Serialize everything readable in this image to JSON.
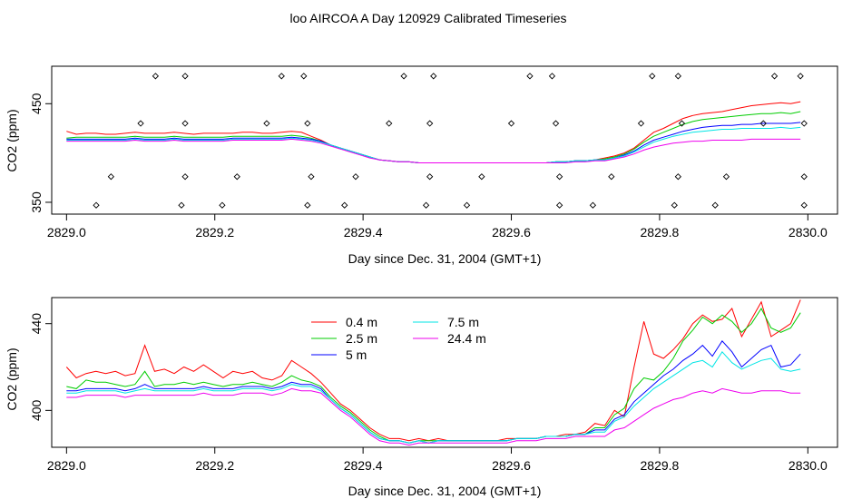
{
  "page": {
    "title": "loo AIRCOA A  Day 120929  Calibrated Timeseries"
  },
  "chart_data": [
    {
      "type": "line",
      "xlabel": "Day since Dec. 31, 2004 (GMT+1)",
      "ylabel": "CO2 (ppm)",
      "xlim": [
        2828.98,
        2830.04
      ],
      "ylim": [
        338,
        488
      ],
      "xticks": [
        "2829.0",
        "2829.2",
        "2829.4",
        "2829.6",
        "2829.8",
        "2830.0"
      ],
      "yticks": [
        "350",
        "450"
      ],
      "grid": false,
      "flags": {
        "top_row": {
          "y": 478,
          "x": [
            2829.12,
            2829.16,
            2829.29,
            2829.32,
            2829.455,
            2829.495,
            2829.625,
            2829.655,
            2829.79,
            2829.825,
            2829.955,
            2829.99
          ]
        },
        "mid_row": {
          "y": 430,
          "x": [
            2829.1,
            2829.16,
            2829.27,
            2829.325,
            2829.435,
            2829.49,
            2829.6,
            2829.66,
            2829.775,
            2829.83,
            2829.94,
            2829.995
          ]
        },
        "low_row": {
          "y": 376,
          "x": [
            2829.06,
            2829.16,
            2829.23,
            2829.33,
            2829.39,
            2829.49,
            2829.56,
            2829.665,
            2829.735,
            2829.825,
            2829.89,
            2829.995
          ]
        },
        "bottom_row": {
          "y": 347,
          "x": [
            2829.04,
            2829.155,
            2829.21,
            2829.325,
            2829.375,
            2829.485,
            2829.54,
            2829.665,
            2829.71,
            2829.82,
            2829.875,
            2829.995
          ]
        }
      },
      "series": [
        {
          "color": "#ff0000",
          "y": [
            422,
            419,
            420,
            420,
            419,
            419,
            420,
            421,
            420,
            420,
            420,
            421,
            420,
            419,
            420,
            420,
            420,
            420,
            421,
            421,
            420,
            420,
            421,
            422,
            421,
            417,
            413,
            408,
            405,
            402,
            399,
            396,
            393,
            392,
            391,
            391,
            390,
            390,
            390,
            390,
            390,
            390,
            390,
            390,
            390,
            390,
            390,
            390,
            390,
            390,
            391,
            391,
            392,
            392,
            393,
            395,
            397,
            400,
            405,
            413,
            421,
            425,
            430,
            435,
            438,
            440,
            441,
            442,
            444,
            446,
            448,
            449,
            450,
            451,
            450,
            452
          ]
        },
        {
          "color": "#00cc00",
          "y": [
            415,
            416,
            416,
            416,
            416,
            416,
            416,
            417,
            416,
            416,
            416,
            417,
            416,
            416,
            416,
            416,
            416,
            417,
            417,
            417,
            417,
            417,
            417,
            418,
            417,
            415,
            412,
            408,
            405,
            402,
            399,
            396,
            393,
            392,
            391,
            391,
            390,
            390,
            390,
            390,
            390,
            390,
            390,
            390,
            390,
            390,
            390,
            390,
            390,
            390,
            391,
            391,
            392,
            392,
            393,
            394,
            396,
            399,
            404,
            411,
            417,
            421,
            425,
            429,
            432,
            434,
            435,
            436,
            437,
            438,
            439,
            440,
            440,
            441,
            440,
            442
          ]
        },
        {
          "color": "#0000ff",
          "y": [
            414,
            414,
            414,
            414,
            414,
            414,
            414,
            415,
            414,
            414,
            414,
            415,
            414,
            414,
            414,
            414,
            414,
            415,
            415,
            415,
            415,
            415,
            415,
            416,
            415,
            414,
            412,
            408,
            405,
            402,
            399,
            396,
            393,
            392,
            391,
            391,
            390,
            390,
            390,
            390,
            390,
            390,
            390,
            390,
            390,
            390,
            390,
            390,
            390,
            390,
            391,
            391,
            392,
            392,
            393,
            393,
            395,
            398,
            402,
            408,
            413,
            416,
            419,
            422,
            424,
            426,
            427,
            428,
            428,
            429,
            429,
            430,
            430,
            430,
            430,
            431
          ]
        },
        {
          "color": "#00e5e5",
          "y": [
            413,
            413,
            413,
            413,
            413,
            413,
            413,
            414,
            413,
            413,
            413,
            414,
            413,
            413,
            413,
            413,
            413,
            414,
            414,
            414,
            414,
            414,
            414,
            415,
            414,
            413,
            411,
            408,
            405,
            402,
            399,
            396,
            393,
            392,
            391,
            391,
            390,
            390,
            390,
            390,
            390,
            390,
            390,
            390,
            390,
            390,
            390,
            390,
            390,
            390,
            391,
            391,
            392,
            392,
            393,
            393,
            395,
            397,
            401,
            406,
            411,
            414,
            417,
            419,
            421,
            422,
            423,
            424,
            424,
            425,
            425,
            425,
            425,
            426,
            425,
            426
          ]
        },
        {
          "color": "#ee00ee",
          "y": [
            412,
            412,
            412,
            412,
            412,
            412,
            412,
            413,
            412,
            412,
            412,
            413,
            412,
            412,
            412,
            412,
            412,
            413,
            413,
            413,
            413,
            413,
            413,
            414,
            413,
            412,
            410,
            407,
            404,
            401,
            398,
            395,
            393,
            392,
            391,
            391,
            390,
            390,
            390,
            390,
            390,
            390,
            390,
            390,
            390,
            390,
            390,
            390,
            390,
            390,
            390,
            390,
            391,
            391,
            392,
            392,
            394,
            396,
            399,
            403,
            406,
            408,
            410,
            411,
            412,
            412,
            413,
            413,
            413,
            413,
            414,
            414,
            414,
            414,
            414,
            414
          ]
        }
      ]
    },
    {
      "type": "line",
      "xlabel": "Day since Dec. 31, 2004 (GMT+1)",
      "ylabel": "CO2 (ppm)",
      "xlim": [
        2828.98,
        2830.04
      ],
      "ylim": [
        383,
        452
      ],
      "xticks": [
        "2829.0",
        "2829.2",
        "2829.4",
        "2829.6",
        "2829.8",
        "2830.0"
      ],
      "yticks": [
        "400",
        "440"
      ],
      "grid": false,
      "legend": {
        "placement": "top-left",
        "entries": [
          "0.4 m",
          "2.5 m",
          "5 m",
          "7.5 m",
          "24.4 m"
        ]
      },
      "series": [
        {
          "name": "0.4 m",
          "color": "#ff0000",
          "y": [
            420,
            415,
            417,
            418,
            417,
            418,
            416,
            417,
            430,
            418,
            419,
            417,
            420,
            418,
            421,
            418,
            415,
            418,
            417,
            418,
            415,
            414,
            416,
            423,
            420,
            417,
            413,
            408,
            403,
            400,
            396,
            392,
            389,
            387,
            387,
            386,
            387,
            386,
            387,
            386,
            386,
            386,
            386,
            386,
            386,
            387,
            387,
            387,
            387,
            388,
            388,
            389,
            389,
            390,
            394,
            393,
            400,
            397,
            420,
            441,
            426,
            424,
            428,
            433,
            440,
            444,
            441,
            442,
            447,
            434,
            442,
            450,
            434,
            437,
            440,
            451
          ]
        },
        {
          "name": "2.5 m",
          "color": "#00cc00",
          "y": [
            411,
            410,
            414,
            413,
            413,
            412,
            411,
            412,
            418,
            411,
            412,
            412,
            413,
            412,
            413,
            412,
            411,
            412,
            412,
            413,
            412,
            411,
            413,
            416,
            414,
            413,
            411,
            406,
            402,
            399,
            395,
            391,
            388,
            386,
            386,
            385,
            386,
            386,
            386,
            386,
            386,
            386,
            386,
            386,
            386,
            386,
            387,
            387,
            387,
            388,
            388,
            388,
            389,
            389,
            392,
            392,
            398,
            401,
            410,
            415,
            414,
            418,
            424,
            432,
            437,
            443,
            440,
            444,
            441,
            436,
            440,
            447,
            438,
            436,
            438,
            445
          ]
        },
        {
          "name": "5 m",
          "color": "#0000ff",
          "y": [
            409,
            409,
            410,
            410,
            410,
            410,
            409,
            410,
            412,
            410,
            410,
            410,
            410,
            410,
            411,
            410,
            410,
            410,
            411,
            411,
            411,
            410,
            411,
            413,
            412,
            412,
            410,
            405,
            401,
            398,
            394,
            390,
            387,
            386,
            386,
            385,
            386,
            385,
            386,
            386,
            386,
            386,
            386,
            386,
            386,
            386,
            387,
            387,
            387,
            388,
            388,
            388,
            389,
            389,
            391,
            391,
            396,
            398,
            404,
            408,
            412,
            416,
            419,
            423,
            426,
            430,
            425,
            432,
            427,
            420,
            424,
            428,
            430,
            420,
            421,
            426
          ]
        },
        {
          "name": "7.5 m",
          "color": "#00e5e5",
          "y": [
            408,
            408,
            409,
            409,
            409,
            409,
            408,
            409,
            410,
            409,
            409,
            409,
            409,
            409,
            410,
            409,
            409,
            409,
            410,
            410,
            410,
            409,
            410,
            412,
            411,
            411,
            409,
            405,
            401,
            398,
            394,
            390,
            387,
            386,
            386,
            385,
            386,
            385,
            386,
            386,
            386,
            386,
            386,
            386,
            386,
            386,
            387,
            387,
            387,
            388,
            388,
            388,
            389,
            389,
            390,
            390,
            395,
            397,
            402,
            406,
            410,
            413,
            416,
            419,
            422,
            423,
            420,
            427,
            422,
            419,
            421,
            423,
            424,
            419,
            418,
            419
          ]
        },
        {
          "name": "24.4 m",
          "color": "#ee00ee",
          "y": [
            406,
            406,
            407,
            407,
            407,
            407,
            406,
            407,
            407,
            407,
            407,
            407,
            407,
            407,
            408,
            407,
            407,
            407,
            408,
            408,
            408,
            407,
            408,
            410,
            409,
            409,
            408,
            404,
            400,
            397,
            393,
            389,
            386,
            385,
            385,
            384,
            385,
            385,
            385,
            385,
            385,
            385,
            385,
            385,
            385,
            385,
            386,
            386,
            386,
            387,
            387,
            387,
            388,
            388,
            388,
            388,
            391,
            392,
            395,
            398,
            401,
            403,
            405,
            406,
            408,
            409,
            408,
            410,
            409,
            408,
            408,
            409,
            409,
            409,
            408,
            408
          ]
        }
      ]
    }
  ]
}
